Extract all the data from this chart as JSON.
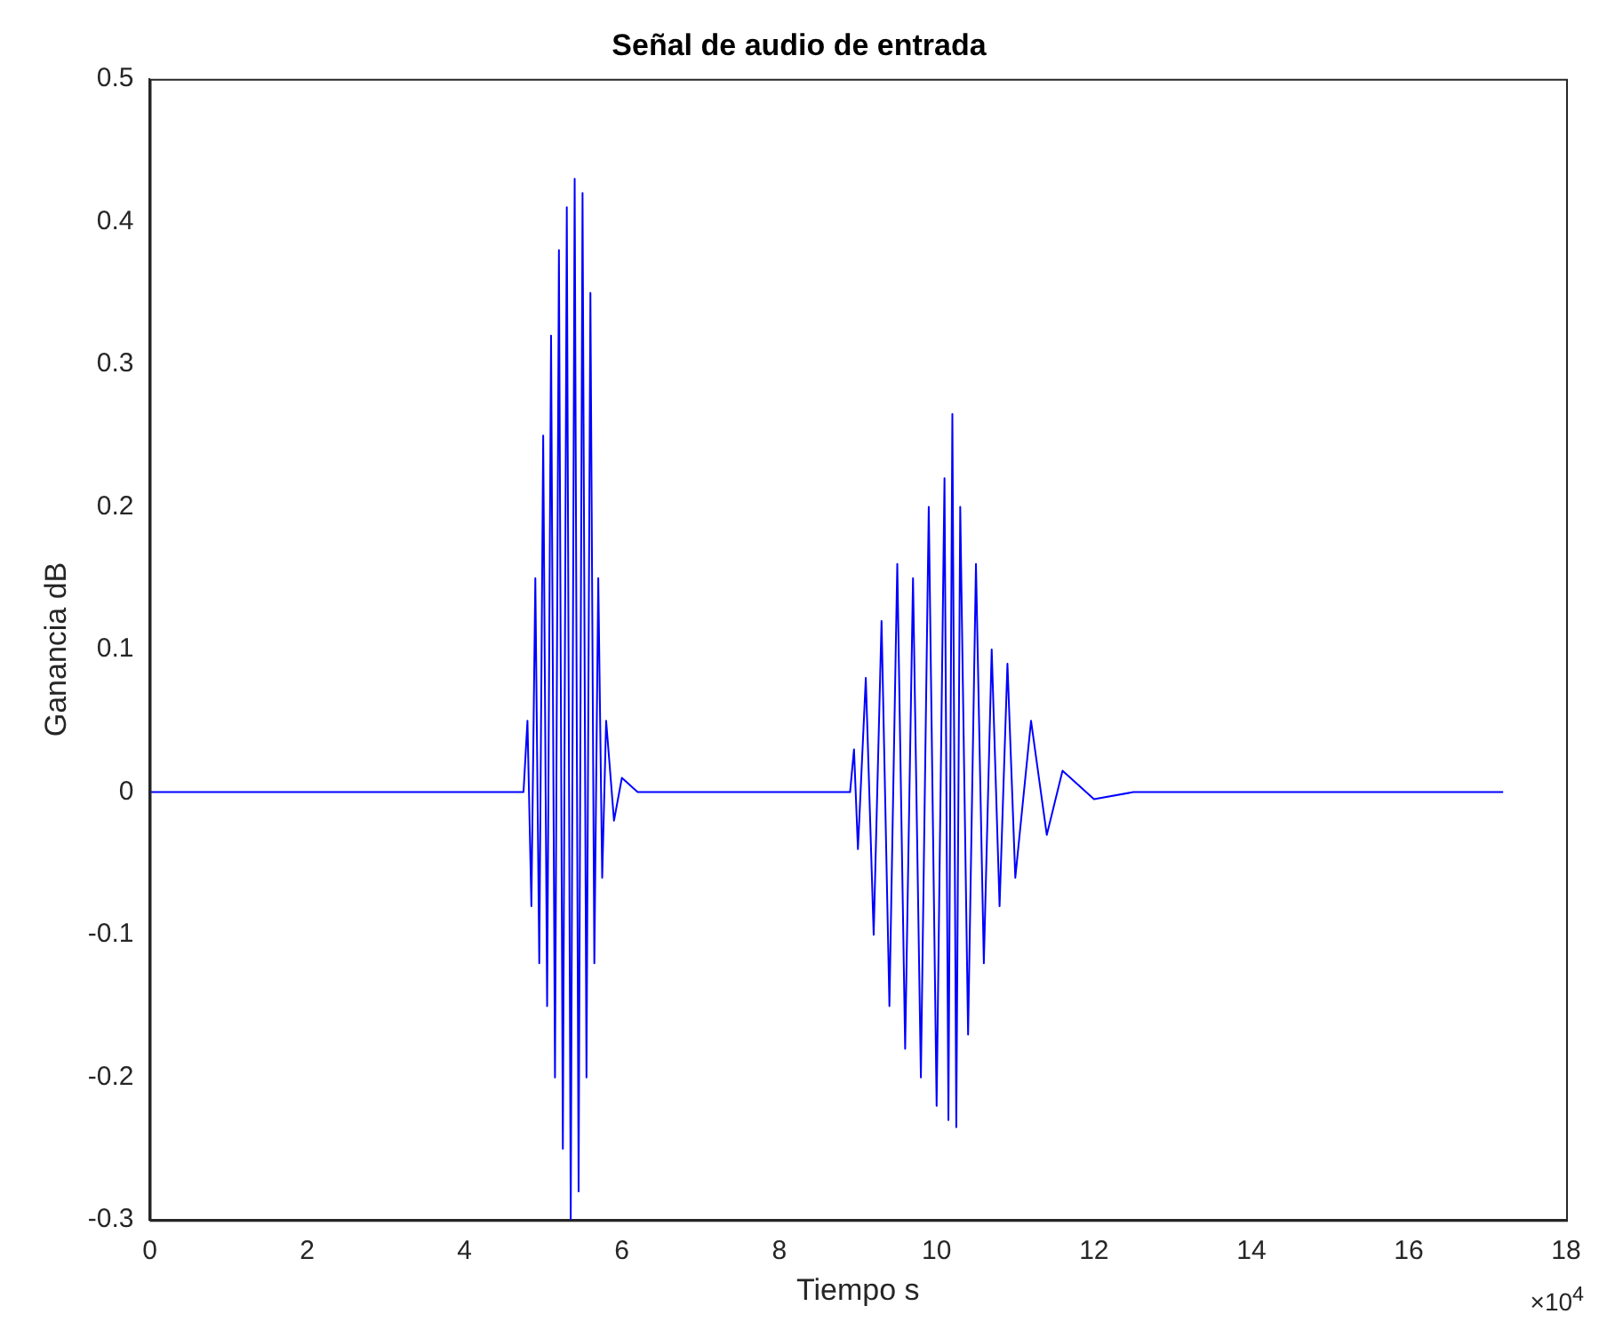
{
  "chart_data": {
    "type": "line",
    "title": "Señal de audio de entrada",
    "xlabel": "Tiempo s",
    "ylabel": "Ganancia dB",
    "annotations": [
      "×10$^{4}$"
    ],
    "xlim": [
      0,
      18
    ],
    "xticks": [
      0,
      2,
      4,
      6,
      8,
      10,
      12,
      14,
      16,
      18
    ],
    "ylim": [
      -0.3,
      0.5
    ],
    "yticks": [
      -0.3,
      -0.2,
      -0.1,
      0,
      0.1,
      0.2,
      0.3,
      0.4,
      0.5
    ],
    "grid": false,
    "legend": false,
    "marker": "none",
    "line_style": "solid",
    "series": [
      {
        "color": "#0000ff",
        "x": [
          0,
          3.5,
          4.75,
          4.8,
          4.85,
          4.9,
          4.95,
          5.0,
          5.05,
          5.1,
          5.15,
          5.2,
          5.25,
          5.3,
          5.35,
          5.4,
          5.45,
          5.5,
          5.55,
          5.6,
          5.65,
          5.7,
          5.75,
          5.8,
          5.9,
          6.0,
          6.2,
          7.4,
          8.9,
          8.95,
          9.0,
          9.1,
          9.2,
          9.3,
          9.4,
          9.5,
          9.6,
          9.7,
          9.8,
          9.9,
          10.0,
          10.1,
          10.15,
          10.2,
          10.25,
          10.3,
          10.4,
          10.5,
          10.6,
          10.7,
          10.8,
          10.9,
          11.0,
          11.2,
          11.4,
          11.6,
          12.0,
          12.5,
          17.2
        ],
        "values": [
          0,
          0,
          0,
          0.05,
          -0.08,
          0.15,
          -0.12,
          0.25,
          -0.15,
          0.32,
          -0.2,
          0.38,
          -0.25,
          0.41,
          -0.3,
          0.43,
          -0.28,
          0.42,
          -0.2,
          0.35,
          -0.12,
          0.15,
          -0.06,
          0.05,
          -0.02,
          0.01,
          0,
          0,
          0,
          0.03,
          -0.04,
          0.08,
          -0.1,
          0.12,
          -0.15,
          0.16,
          -0.18,
          0.15,
          -0.2,
          0.2,
          -0.22,
          0.22,
          -0.23,
          0.265,
          -0.235,
          0.2,
          -0.17,
          0.16,
          -0.12,
          0.1,
          -0.08,
          0.09,
          -0.06,
          0.05,
          -0.03,
          0.015,
          -0.005,
          0,
          0
        ]
      }
    ]
  }
}
